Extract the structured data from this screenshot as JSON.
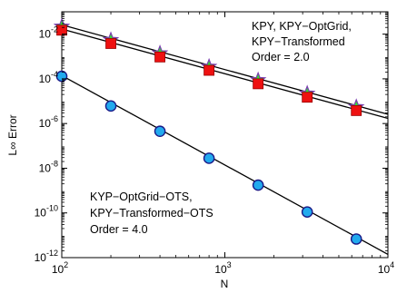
{
  "chart_data": {
    "type": "scatter",
    "xscale": "log",
    "yscale": "log",
    "xlabel": "N",
    "ylabel": "L∞ Error",
    "xlim": [
      100,
      10000
    ],
    "ylim": [
      1e-12,
      0.1
    ],
    "x_ticks": [
      {
        "value": 100,
        "base": "10",
        "exp": "2"
      },
      {
        "value": 1000,
        "base": "10",
        "exp": "3"
      },
      {
        "value": 10000,
        "base": "10",
        "exp": "4"
      }
    ],
    "y_ticks": [
      {
        "value": 0.01,
        "base": "10",
        "exp": "-2"
      },
      {
        "value": 0.0001,
        "base": "10",
        "exp": "-4"
      },
      {
        "value": 1e-06,
        "base": "10",
        "exp": "-6"
      },
      {
        "value": 1e-08,
        "base": "10",
        "exp": "-8"
      },
      {
        "value": 1e-10,
        "base": "10",
        "exp": "-10"
      },
      {
        "value": 1e-12,
        "base": "10",
        "exp": "-12"
      }
    ],
    "grid": false,
    "legend": "none",
    "x": [
      100,
      200,
      400,
      800,
      1600,
      3200,
      6400
    ],
    "series": [
      {
        "marker": "star",
        "color": "#33dd33",
        "edge": "#7a3fb0",
        "values": [
          0.022,
          0.0055,
          0.0014,
          0.00035,
          8.8e-05,
          2.2e-05,
          5.5e-06
        ]
      },
      {
        "marker": "square",
        "color": "#ee1111",
        "edge": "#990000",
        "values": [
          0.015,
          0.0038,
          0.00095,
          0.00024,
          6e-05,
          1.5e-05,
          3.8e-06
        ]
      },
      {
        "marker": "circle",
        "color": "#22aaee",
        "edge": "#1a1a88",
        "values": [
          0.00013,
          6.1e-06,
          4.5e-07,
          2.8e-08,
          1.75e-09,
          1.1e-10,
          6.8e-12
        ]
      }
    ],
    "fit_lines": [
      {
        "color": "#000000",
        "points": [
          [
            100,
            0.026
          ],
          [
            10000,
            2.6e-06
          ]
        ]
      },
      {
        "color": "#000000",
        "points": [
          [
            100,
            0.017
          ],
          [
            10000,
            1.7e-06
          ]
        ]
      },
      {
        "color": "#000000",
        "points": [
          [
            100,
            0.00014
          ],
          [
            10000,
            1.4e-12
          ]
        ]
      }
    ],
    "annotations": [
      {
        "id": "order2",
        "lines": [
          "KPY, KPY−OptGrid,",
          "KPY−Transformed",
          "Order = 2.0"
        ]
      },
      {
        "id": "order4",
        "lines": [
          "KYP−OptGrid−OTS,",
          "KPY−Transformed−OTS",
          "Order = 4.0"
        ]
      }
    ]
  }
}
